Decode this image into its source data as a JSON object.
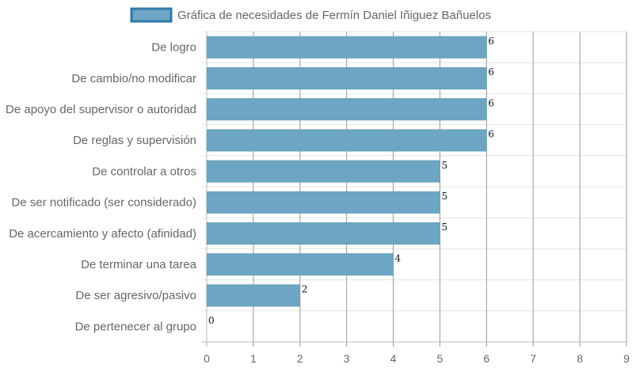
{
  "chart_data": {
    "type": "bar",
    "orientation": "horizontal",
    "legend_position": "top",
    "grid": true,
    "categories": [
      "De logro",
      "De cambio/no modificar",
      "De apoyo del supervisor o autoridad",
      "De reglas y supervisión",
      "De controlar a otros",
      "De ser notificado (ser considerado)",
      "De acercamiento y afecto (afinidad)",
      "De terminar una tarea",
      "De ser agresivo/pasivo",
      "De pertenecer al grupo"
    ],
    "series": [
      {
        "name": "Gráfica de necesidades de Fermín Daniel Iñiguez Bañuelos",
        "values": [
          6,
          6,
          6,
          6,
          5,
          5,
          5,
          4,
          2,
          0
        ],
        "color": "#6ca6c4",
        "border_color": "#2f7aa7"
      }
    ],
    "x_ticks": [
      "0",
      "1",
      "2",
      "3",
      "4",
      "5",
      "6",
      "7",
      "8",
      "9"
    ],
    "xlim": [
      0,
      9
    ],
    "data_labels": [
      "6",
      "6",
      "6",
      "6",
      "5",
      "5",
      "5",
      "4",
      "2",
      "0"
    ]
  }
}
